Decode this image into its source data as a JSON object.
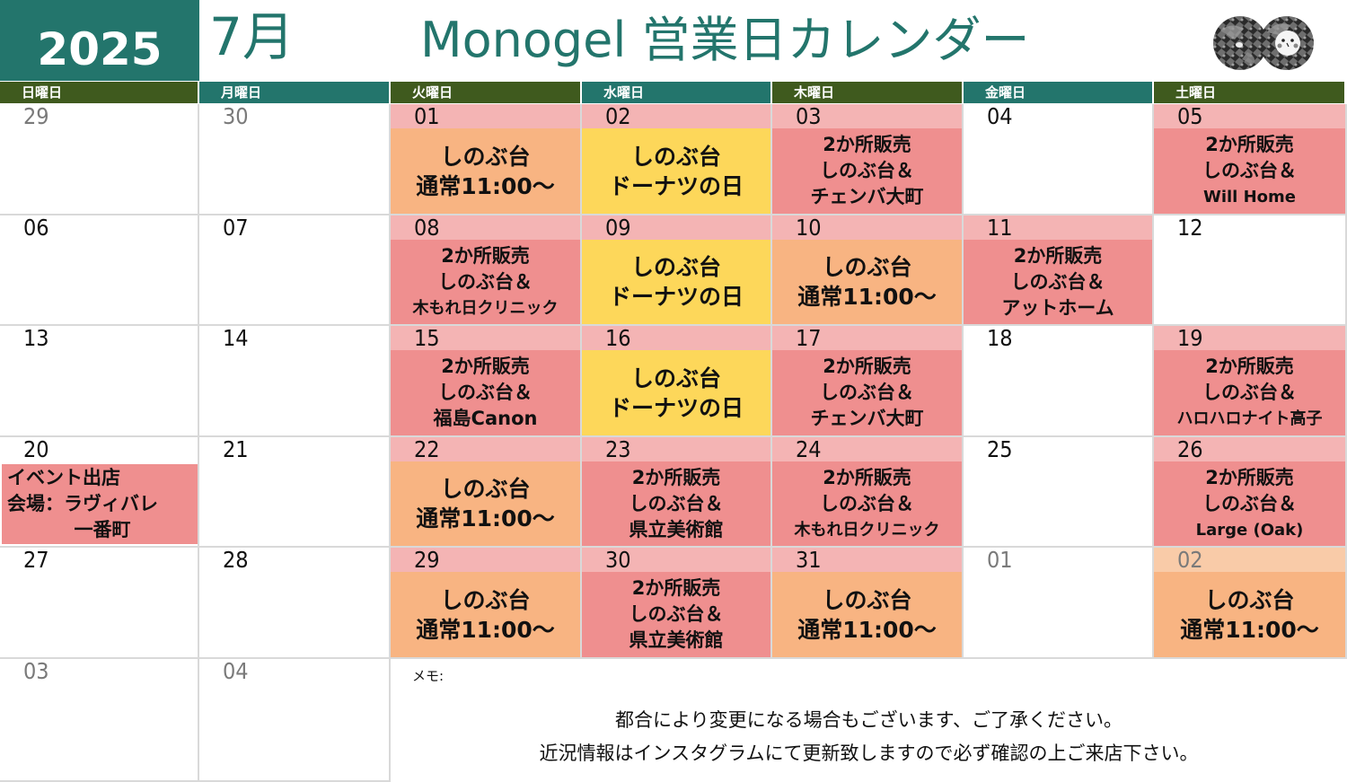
{
  "header": {
    "year": "2025",
    "month": "7月",
    "title": "Monogel 営業日カレンダー",
    "logo": "two-ornamented-circles-logo"
  },
  "days_of_week": [
    "日曜日",
    "月曜日",
    "火曜日",
    "水曜日",
    "木曜日",
    "金曜日",
    "土曜日"
  ],
  "colors": {
    "teal": "#23756c",
    "olive": "#3f5a1e",
    "date_band_pink": "#f4b4b4",
    "date_band_peach": "#f9cba8",
    "event_orange": "#f8b482",
    "event_yellow": "#fdd75a",
    "event_pink": "#ef8f8f",
    "grid_line": "#d9d9d9"
  },
  "weeks": [
    [
      {
        "day": "29",
        "other_month": true
      },
      {
        "day": "30",
        "other_month": true
      },
      {
        "day": "01",
        "event": {
          "type": "orange",
          "lines": [
            "しのぶ台",
            "通常11:00～"
          ]
        }
      },
      {
        "day": "02",
        "event": {
          "type": "yellow",
          "lines": [
            "しのぶ台",
            "ドーナツの日"
          ]
        }
      },
      {
        "day": "03",
        "event": {
          "type": "pink",
          "lines": [
            "2か所販売",
            "しのぶ台＆",
            "チェンバ大町"
          ]
        }
      },
      {
        "day": "04"
      },
      {
        "day": "05",
        "event": {
          "type": "pink",
          "lines": [
            "2か所販売",
            "しのぶ台＆",
            "Will Home"
          ]
        }
      }
    ],
    [
      {
        "day": "06"
      },
      {
        "day": "07"
      },
      {
        "day": "08",
        "event": {
          "type": "pink",
          "lines": [
            "2か所販売",
            "しのぶ台＆",
            "木もれ日クリニック"
          ]
        }
      },
      {
        "day": "09",
        "event": {
          "type": "yellow",
          "lines": [
            "しのぶ台",
            "ドーナツの日"
          ]
        }
      },
      {
        "day": "10",
        "event": {
          "type": "orange",
          "lines": [
            "しのぶ台",
            "通常11:00～"
          ]
        }
      },
      {
        "day": "11",
        "event": {
          "type": "pink",
          "lines": [
            "2か所販売",
            "しのぶ台＆",
            "アットホーム"
          ]
        }
      },
      {
        "day": "12"
      }
    ],
    [
      {
        "day": "13"
      },
      {
        "day": "14"
      },
      {
        "day": "15",
        "event": {
          "type": "pink",
          "lines": [
            "2か所販売",
            "しのぶ台＆",
            "福島Canon"
          ]
        }
      },
      {
        "day": "16",
        "event": {
          "type": "yellow",
          "lines": [
            "しのぶ台",
            "ドーナツの日"
          ]
        }
      },
      {
        "day": "17",
        "event": {
          "type": "pink",
          "lines": [
            "2か所販売",
            "しのぶ台＆",
            "チェンバ大町"
          ]
        }
      },
      {
        "day": "18"
      },
      {
        "day": "19",
        "event": {
          "type": "pink",
          "lines": [
            "2か所販売",
            "しのぶ台＆",
            "ハロハロナイト高子"
          ]
        }
      }
    ],
    [
      {
        "day": "20",
        "event": {
          "type": "pink",
          "lines": [
            "イベント出店",
            "会場：ラヴィバレ",
            "一番町"
          ]
        }
      },
      {
        "day": "21"
      },
      {
        "day": "22",
        "event": {
          "type": "orange",
          "lines": [
            "しのぶ台",
            "通常11:00～"
          ]
        }
      },
      {
        "day": "23",
        "event": {
          "type": "pink",
          "lines": [
            "2か所販売",
            "しのぶ台＆",
            "県立美術館"
          ]
        }
      },
      {
        "day": "24",
        "event": {
          "type": "pink",
          "lines": [
            "2か所販売",
            "しのぶ台＆",
            "木もれ日クリニック"
          ]
        }
      },
      {
        "day": "25"
      },
      {
        "day": "26",
        "event": {
          "type": "pink",
          "lines": [
            "2か所販売",
            "しのぶ台＆",
            "Large (Oak)"
          ]
        }
      }
    ],
    [
      {
        "day": "27"
      },
      {
        "day": "28"
      },
      {
        "day": "29",
        "event": {
          "type": "orange",
          "lines": [
            "しのぶ台",
            "通常11:00～"
          ]
        }
      },
      {
        "day": "30",
        "event": {
          "type": "pink",
          "lines": [
            "2か所販売",
            "しのぶ台＆",
            "県立美術館"
          ]
        }
      },
      {
        "day": "31",
        "event": {
          "type": "orange",
          "lines": [
            "しのぶ台",
            "通常11:00～"
          ]
        }
      },
      {
        "day": "01",
        "other_month": true
      },
      {
        "day": "02",
        "other_month": true,
        "event": {
          "type": "orange",
          "lines": [
            "しのぶ台",
            "通常11:00～"
          ]
        }
      }
    ],
    [
      {
        "day": "03",
        "other_month": true
      },
      {
        "day": "04",
        "other_month": true
      }
    ]
  ],
  "memo": {
    "label": "メモ:",
    "lines": [
      "都合により変更になる場合もございます、ご了承ください。",
      "近況情報はインスタグラムにて更新致しますので必ず確認の上ご来店下さい。"
    ]
  }
}
